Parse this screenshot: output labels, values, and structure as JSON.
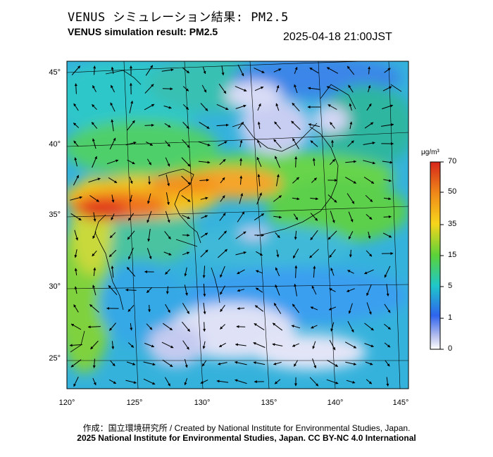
{
  "title_jp": "VENUS シミュレーション結果: PM2.5",
  "title_en": "VENUS simulation result: PM2.5",
  "timestamp": "2025-04-18 21:00JST",
  "lat_labels": [
    {
      "label": "45°",
      "value": 45
    },
    {
      "label": "40°",
      "value": 40
    },
    {
      "label": "35°",
      "value": 35
    },
    {
      "label": "30°",
      "value": 30
    },
    {
      "label": "25°",
      "value": 25
    }
  ],
  "lon_labels": [
    {
      "label": "120°",
      "value": 120
    },
    {
      "label": "125°",
      "value": 125
    },
    {
      "label": "130°",
      "value": 130
    },
    {
      "label": "135°",
      "value": 135
    },
    {
      "label": "140°",
      "value": 140
    },
    {
      "label": "145°",
      "value": 145
    }
  ],
  "colorbar": {
    "unit": "μg/m³",
    "ticks": [
      "70",
      "50",
      "35",
      "15",
      "5",
      "1",
      "0"
    ],
    "colors": [
      "#d7261b",
      "#f08a19",
      "#f7d51c",
      "#5ad23a",
      "#1fc7c9",
      "#2e64ee",
      "#b7bfee",
      "#ffffff"
    ]
  },
  "credit_line1": "作成：国立環境研究所 / Created by National Institute for Environmental Studies, Japan.",
  "credit_line2": "2025 National Institute for Environmental Studies, Japan. CC BY-NC 4.0 International"
}
